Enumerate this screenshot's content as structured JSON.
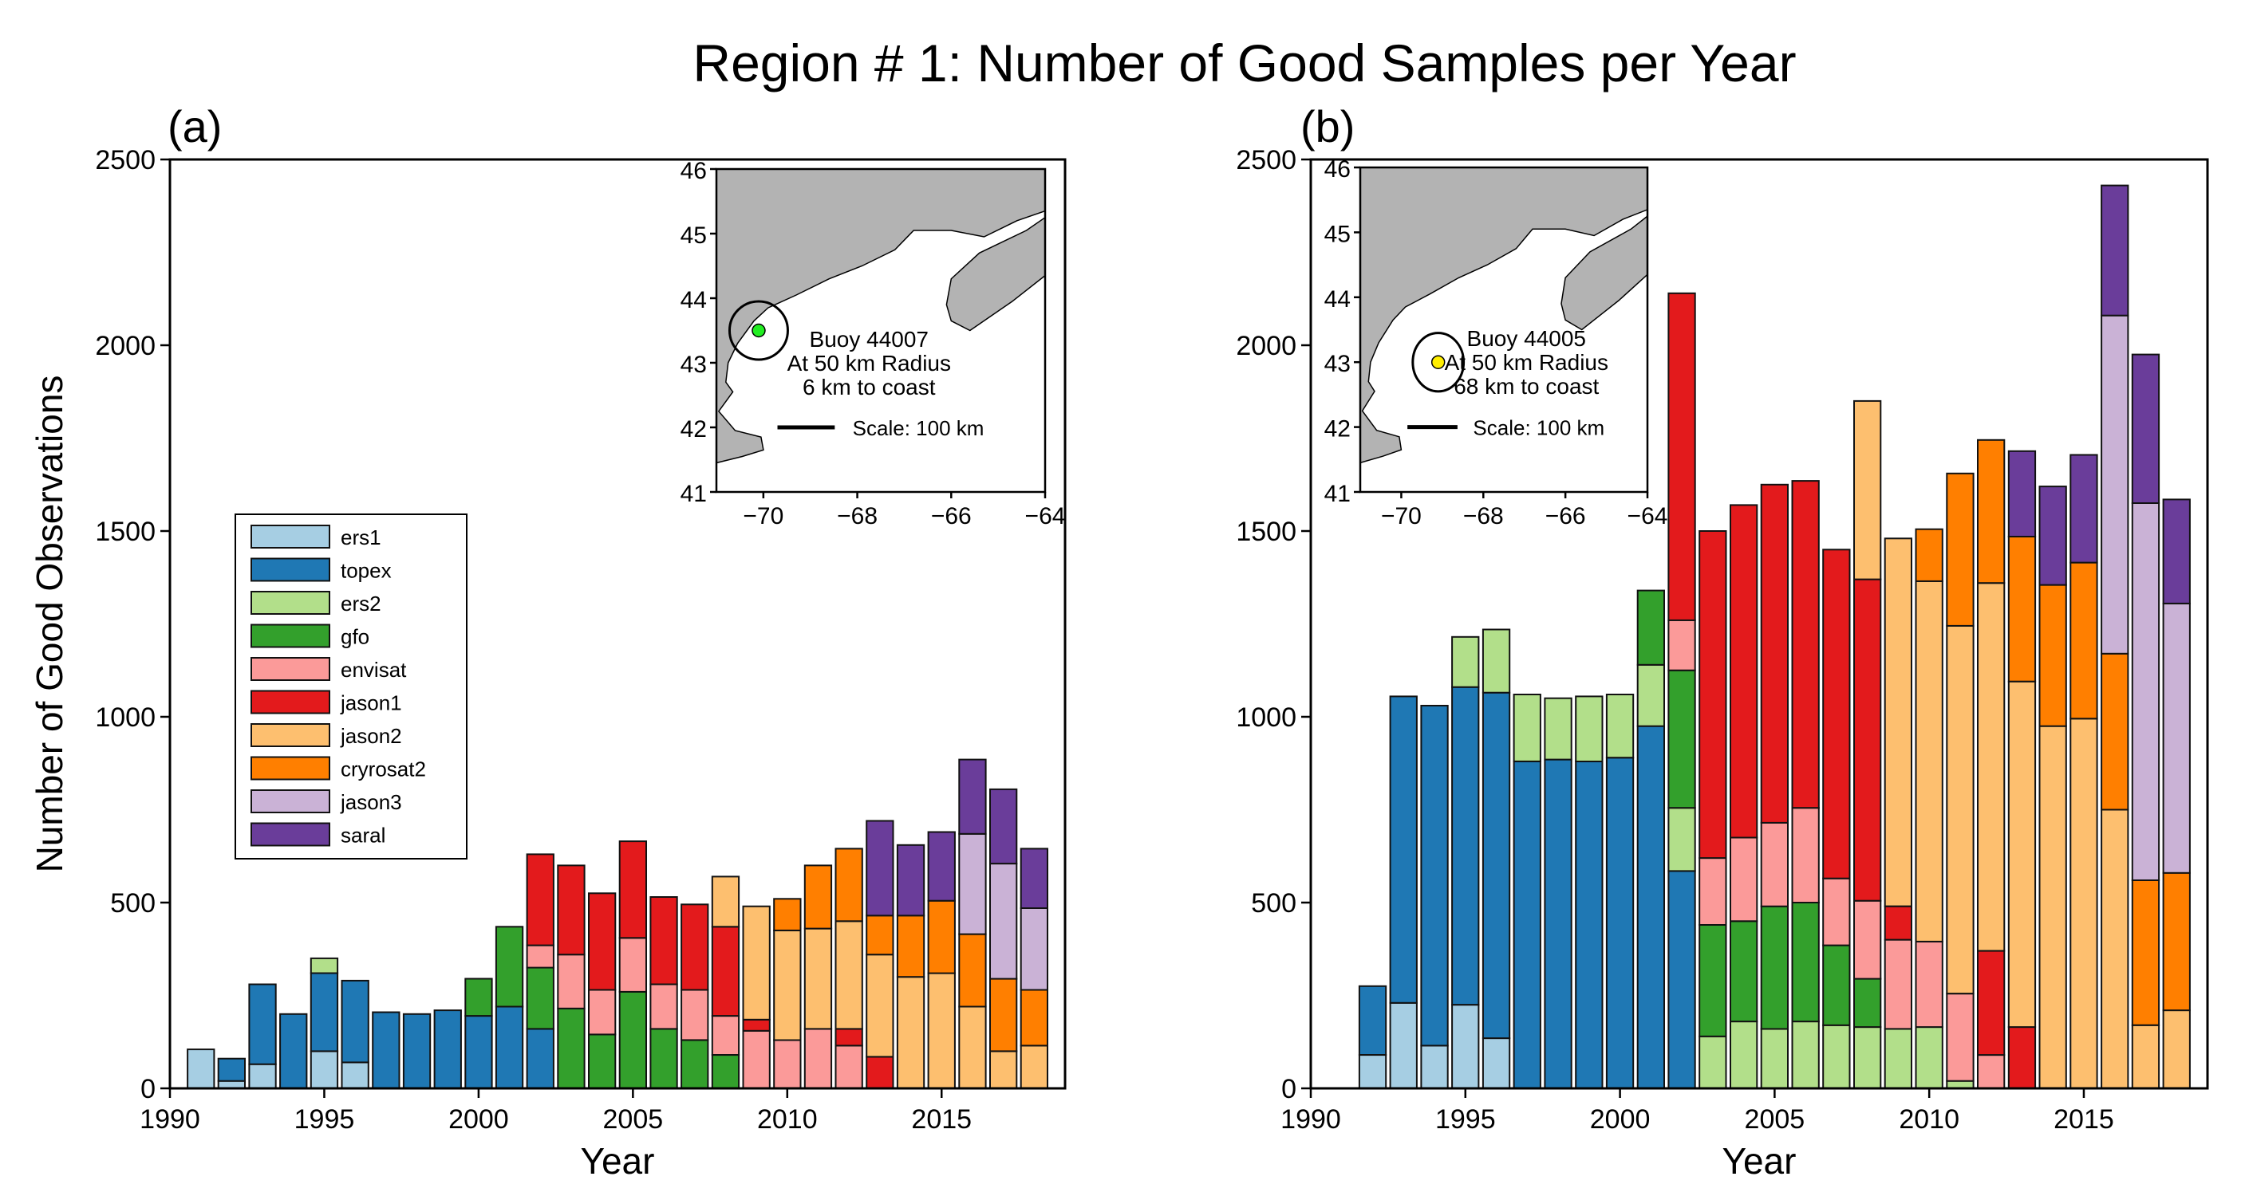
{
  "figure": {
    "title": "Region # 1: Number of Good Samples per Year",
    "xlabel": "Year"
  },
  "colors": {
    "ers1": "#a6cee3",
    "topex": "#1f78b4",
    "ers2": "#b2df8a",
    "gfo": "#33a02c",
    "envisat": "#fb9a99",
    "jason1": "#e31a1c",
    "jason2": "#fdbf6f",
    "cryrosat2": "#ff7f00",
    "jason3": "#cab2d6",
    "saral": "#6a3d9a",
    "land": "#b3b3b3",
    "buoy_a": "#22ee22",
    "buoy_b": "#ffee00"
  },
  "legend": {
    "items": [
      {
        "key": "ers1",
        "label": "ers1"
      },
      {
        "key": "topex",
        "label": "topex"
      },
      {
        "key": "ers2",
        "label": "ers2"
      },
      {
        "key": "gfo",
        "label": "gfo"
      },
      {
        "key": "envisat",
        "label": "envisat"
      },
      {
        "key": "jason1",
        "label": "jason1"
      },
      {
        "key": "jason2",
        "label": "jason2"
      },
      {
        "key": "cryrosat2",
        "label": "cryrosat2"
      },
      {
        "key": "jason3",
        "label": "jason3"
      },
      {
        "key": "saral",
        "label": "saral"
      }
    ]
  },
  "chart_data": [
    {
      "type": "bar",
      "stacked": true,
      "panel_label": "(a)",
      "title": "Region # 1: Number of Good Samples per Year",
      "xlabel": "Year",
      "ylabel": "Number of Good Observations",
      "xlim": [
        1990,
        2019
      ],
      "ylim": [
        0,
        2500
      ],
      "xticks": [
        1990,
        1995,
        2000,
        2005,
        2010,
        2015
      ],
      "yticks": [
        0,
        500,
        1000,
        1500,
        2000,
        2500
      ],
      "legend_position": "center-left",
      "years": [
        1991,
        1992,
        1993,
        1994,
        1995,
        1996,
        1997,
        1998,
        1999,
        2000,
        2001,
        2002,
        2003,
        2004,
        2005,
        2006,
        2007,
        2008,
        2009,
        2010,
        2011,
        2012,
        2013,
        2014,
        2015,
        2016,
        2017,
        2018
      ],
      "series": [
        {
          "name": "ers1",
          "values": [
            105,
            20,
            65,
            0,
            100,
            70,
            0,
            0,
            0,
            0,
            0,
            0,
            0,
            0,
            0,
            0,
            0,
            0,
            0,
            0,
            0,
            0,
            0,
            0,
            0,
            0,
            0,
            0
          ]
        },
        {
          "name": "topex",
          "values": [
            0,
            60,
            215,
            200,
            210,
            220,
            205,
            200,
            210,
            195,
            220,
            160,
            0,
            0,
            0,
            0,
            0,
            0,
            0,
            0,
            0,
            0,
            0,
            0,
            0,
            0,
            0,
            0
          ]
        },
        {
          "name": "ers2",
          "values": [
            0,
            0,
            0,
            0,
            40,
            0,
            0,
            0,
            0,
            0,
            0,
            0,
            0,
            0,
            0,
            0,
            0,
            0,
            0,
            0,
            0,
            0,
            0,
            0,
            0,
            0,
            0,
            0
          ]
        },
        {
          "name": "gfo",
          "values": [
            0,
            0,
            0,
            0,
            0,
            0,
            0,
            0,
            0,
            100,
            215,
            165,
            215,
            145,
            260,
            160,
            130,
            90,
            0,
            0,
            0,
            0,
            0,
            0,
            0,
            0,
            0,
            0
          ]
        },
        {
          "name": "envisat",
          "values": [
            0,
            0,
            0,
            0,
            0,
            0,
            0,
            0,
            0,
            0,
            0,
            60,
            145,
            120,
            145,
            120,
            135,
            105,
            155,
            130,
            160,
            115,
            0,
            0,
            0,
            0,
            0,
            0
          ]
        },
        {
          "name": "jason1",
          "values": [
            0,
            0,
            0,
            0,
            0,
            0,
            0,
            0,
            0,
            0,
            0,
            245,
            240,
            260,
            260,
            235,
            230,
            240,
            30,
            0,
            0,
            45,
            85,
            0,
            0,
            0,
            0,
            0
          ]
        },
        {
          "name": "jason2",
          "values": [
            0,
            0,
            0,
            0,
            0,
            0,
            0,
            0,
            0,
            0,
            0,
            0,
            0,
            0,
            0,
            0,
            0,
            135,
            305,
            295,
            270,
            290,
            275,
            300,
            310,
            220,
            100,
            115
          ]
        },
        {
          "name": "cryrosat2",
          "values": [
            0,
            0,
            0,
            0,
            0,
            0,
            0,
            0,
            0,
            0,
            0,
            0,
            0,
            0,
            0,
            0,
            0,
            0,
            0,
            85,
            170,
            195,
            105,
            165,
            195,
            195,
            195,
            150
          ]
        },
        {
          "name": "jason3",
          "values": [
            0,
            0,
            0,
            0,
            0,
            0,
            0,
            0,
            0,
            0,
            0,
            0,
            0,
            0,
            0,
            0,
            0,
            0,
            0,
            0,
            0,
            0,
            0,
            0,
            0,
            270,
            310,
            220
          ]
        },
        {
          "name": "saral",
          "values": [
            0,
            0,
            0,
            0,
            0,
            0,
            0,
            0,
            0,
            0,
            0,
            0,
            0,
            0,
            0,
            0,
            0,
            0,
            0,
            0,
            0,
            0,
            255,
            190,
            185,
            200,
            200,
            160
          ]
        }
      ],
      "inset_map": {
        "lat_ticks": [
          "46",
          "45",
          "44",
          "43",
          "42",
          "41"
        ],
        "lon_ticks": [
          "−70",
          "−68",
          "−66",
          "−64"
        ],
        "lines": [
          "Buoy 44007",
          "At 50 km Radius",
          "6 km to coast"
        ],
        "scale_label": "Scale: 100 km",
        "buoy": {
          "lon": -70.1,
          "lat": 43.5
        },
        "xlim": [
          -71,
          -64
        ],
        "ylim": [
          41,
          46
        ]
      }
    },
    {
      "type": "bar",
      "stacked": true,
      "panel_label": "(b)",
      "xlabel": "Year",
      "ylabel": "",
      "xlim": [
        1990,
        2019
      ],
      "ylim": [
        0,
        2500
      ],
      "xticks": [
        1990,
        1995,
        2000,
        2005,
        2010,
        2015
      ],
      "yticks": [
        0,
        500,
        1000,
        1500,
        2000,
        2500
      ],
      "years": [
        1992,
        1993,
        1994,
        1995,
        1996,
        1997,
        1998,
        1999,
        2000,
        2001,
        2002,
        2003,
        2004,
        2005,
        2006,
        2007,
        2008,
        2009,
        2010,
        2011,
        2012,
        2013,
        2014,
        2015,
        2016,
        2017,
        2018
      ],
      "series": [
        {
          "name": "ers1",
          "values": [
            90,
            230,
            115,
            225,
            135,
            0,
            0,
            0,
            0,
            0,
            0,
            0,
            0,
            0,
            0,
            0,
            0,
            0,
            0,
            0,
            0,
            0,
            0,
            0,
            0,
            0,
            0
          ]
        },
        {
          "name": "topex",
          "values": [
            185,
            825,
            915,
            855,
            930,
            880,
            885,
            880,
            890,
            975,
            585,
            0,
            0,
            0,
            0,
            0,
            0,
            0,
            0,
            0,
            0,
            0,
            0,
            0,
            0,
            0,
            0
          ]
        },
        {
          "name": "ers2",
          "values": [
            0,
            0,
            0,
            135,
            170,
            180,
            165,
            175,
            170,
            165,
            170,
            140,
            180,
            160,
            180,
            170,
            165,
            160,
            165,
            20,
            0,
            0,
            0,
            0,
            0,
            0,
            0
          ]
        },
        {
          "name": "gfo",
          "values": [
            0,
            0,
            0,
            0,
            0,
            0,
            0,
            0,
            0,
            200,
            370,
            300,
            270,
            330,
            320,
            215,
            130,
            0,
            0,
            0,
            0,
            0,
            0,
            0,
            0,
            0,
            0
          ]
        },
        {
          "name": "envisat",
          "values": [
            0,
            0,
            0,
            0,
            0,
            0,
            0,
            0,
            0,
            0,
            135,
            180,
            225,
            225,
            255,
            180,
            210,
            240,
            230,
            235,
            90,
            0,
            0,
            0,
            0,
            0,
            0
          ]
        },
        {
          "name": "jason1",
          "values": [
            0,
            0,
            0,
            0,
            0,
            0,
            0,
            0,
            0,
            0,
            880,
            880,
            895,
            910,
            880,
            885,
            865,
            90,
            0,
            0,
            280,
            165,
            0,
            0,
            0,
            0,
            0
          ]
        },
        {
          "name": "jason2",
          "values": [
            0,
            0,
            0,
            0,
            0,
            0,
            0,
            0,
            0,
            0,
            0,
            0,
            0,
            0,
            0,
            0,
            480,
            990,
            970,
            990,
            990,
            930,
            975,
            995,
            750,
            170,
            210
          ]
        },
        {
          "name": "cryrosat2",
          "values": [
            0,
            0,
            0,
            0,
            0,
            0,
            0,
            0,
            0,
            0,
            0,
            0,
            0,
            0,
            0,
            0,
            0,
            0,
            140,
            410,
            385,
            390,
            380,
            420,
            420,
            390,
            370
          ]
        },
        {
          "name": "jason3",
          "values": [
            0,
            0,
            0,
            0,
            0,
            0,
            0,
            0,
            0,
            0,
            0,
            0,
            0,
            0,
            0,
            0,
            0,
            0,
            0,
            0,
            0,
            0,
            0,
            0,
            910,
            1015,
            725
          ]
        },
        {
          "name": "saral",
          "values": [
            0,
            0,
            0,
            0,
            0,
            0,
            0,
            0,
            0,
            0,
            0,
            0,
            0,
            0,
            0,
            0,
            0,
            0,
            0,
            0,
            0,
            230,
            265,
            290,
            350,
            400,
            280
          ]
        }
      ],
      "inset_map": {
        "lat_ticks": [
          "46",
          "45",
          "44",
          "43",
          "42",
          "41"
        ],
        "lon_ticks": [
          "−70",
          "−68",
          "−66",
          "−64"
        ],
        "lines": [
          "Buoy 44005",
          "At 50 km Radius",
          "68 km to coast"
        ],
        "scale_label": "Scale: 100 km",
        "buoy": {
          "lon": -69.1,
          "lat": 43.0
        },
        "xlim": [
          -71,
          -64
        ],
        "ylim": [
          41,
          46
        ]
      }
    }
  ]
}
